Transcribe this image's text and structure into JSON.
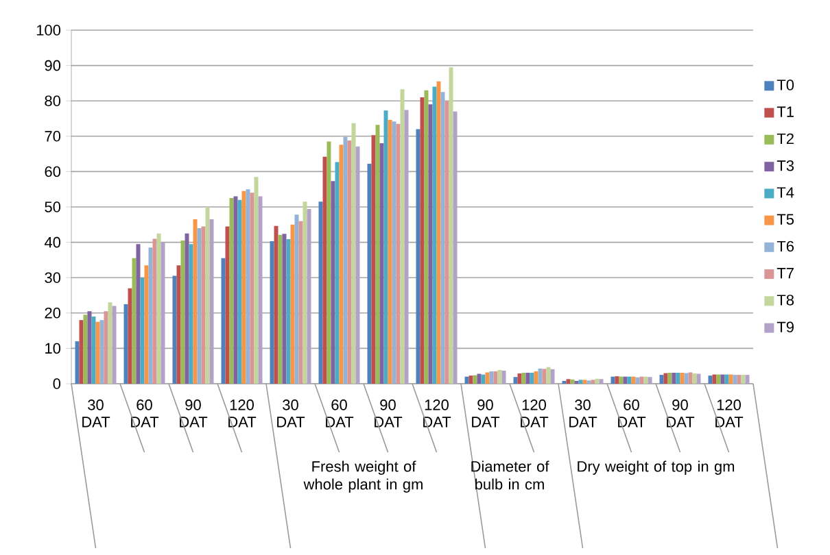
{
  "chart_data": {
    "type": "bar",
    "categories": [
      "30 DAT",
      "60 DAT",
      "90 DAT",
      "120 DAT",
      "30 DAT",
      "60 DAT",
      "90 DAT",
      "120 DAT",
      "90 DAT",
      "120 DAT",
      "30 DAT",
      "60 DAT",
      "90 DAT",
      "120 DAT"
    ],
    "series": [
      {
        "name": "T0",
        "color": "#4f81bd",
        "values": [
          12,
          22.5,
          30.5,
          35.5,
          40.3,
          51.5,
          62.2,
          72,
          2.0,
          1.9,
          0.8,
          2.0,
          2.5,
          2.3
        ]
      },
      {
        "name": "T1",
        "color": "#c0504d",
        "values": [
          18,
          27,
          33.5,
          44.5,
          44.6,
          64.2,
          70.3,
          81,
          2.3,
          2.9,
          1.3,
          2.1,
          3.0,
          2.6
        ]
      },
      {
        "name": "T2",
        "color": "#9bbb59",
        "values": [
          19.5,
          35.5,
          40.5,
          52.5,
          42.1,
          68.5,
          73.2,
          83,
          2.4,
          3.1,
          1.2,
          2.0,
          3.1,
          2.6
        ]
      },
      {
        "name": "T3",
        "color": "#8064a2",
        "values": [
          20.5,
          39.5,
          42.5,
          53,
          42.4,
          57.3,
          68,
          79,
          2.8,
          3.1,
          0.8,
          2.0,
          3.1,
          2.6
        ]
      },
      {
        "name": "T4",
        "color": "#4bacc6",
        "values": [
          19,
          30,
          39.5,
          52,
          40.9,
          62.7,
          77.3,
          84,
          2.6,
          3.1,
          1.1,
          2.0,
          3.1,
          2.6
        ]
      },
      {
        "name": "T5",
        "color": "#f79646",
        "values": [
          17.5,
          33.5,
          46.5,
          54.5,
          45,
          67.6,
          74.6,
          85.5,
          3.2,
          3.5,
          1.1,
          2.0,
          3.1,
          2.6
        ]
      },
      {
        "name": "T6",
        "color": "#95b3d7",
        "values": [
          18,
          38.5,
          44,
          55,
          47.8,
          69.8,
          74.2,
          82.5,
          3.5,
          4.3,
          0.9,
          1.8,
          3.0,
          2.5
        ]
      },
      {
        "name": "T7",
        "color": "#d99694",
        "values": [
          20.5,
          41,
          44.5,
          54,
          46,
          68.8,
          73.5,
          80,
          3.5,
          4.2,
          1.1,
          2.0,
          3.2,
          2.5
        ]
      },
      {
        "name": "T8",
        "color": "#c3d69b",
        "values": [
          23,
          42.5,
          50,
          58.5,
          51.5,
          73.7,
          83.3,
          89.5,
          3.9,
          4.7,
          1.4,
          2.0,
          2.9,
          2.5
        ]
      },
      {
        "name": "T9",
        "color": "#b3a2c7",
        "values": [
          22,
          40,
          46.5,
          53,
          49.4,
          67.1,
          77.4,
          77,
          3.7,
          4.1,
          1.3,
          1.9,
          2.8,
          2.5
        ]
      }
    ],
    "ylim": [
      0,
      100
    ],
    "yticks": [
      0,
      10,
      20,
      30,
      40,
      50,
      60,
      70,
      80,
      90,
      100
    ],
    "grid": "y",
    "legend": "right",
    "annotations": [
      "Fresh weight of whole plant in gm",
      "Diameter of bulb in cm",
      "Dry weight of top in gm"
    ]
  }
}
